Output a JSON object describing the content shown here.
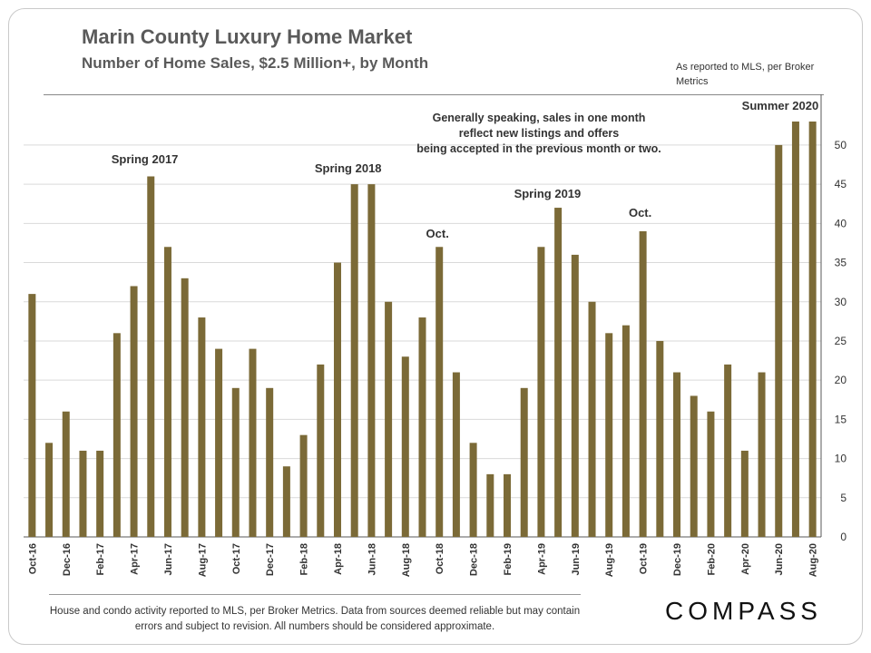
{
  "header": {
    "title": "Marin County Luxury Home Market",
    "subtitle": "Number of Home Sales, $2.5 Million+, by Month",
    "source_note": "As reported to MLS, per Broker Metrics"
  },
  "footer": {
    "footnote": "House and condo activity reported to MLS, per Broker Metrics. Data from sources deemed reliable but may contain errors and subject to revision. All numbers should be considered approximate.",
    "logo_text": "COMPASS"
  },
  "colors": {
    "bar": "#7b6a37",
    "grid": "#d9d9d9",
    "axis": "#595959",
    "text": "#333333"
  },
  "chart_data": {
    "type": "bar",
    "title": "Marin County Luxury Home Market",
    "subtitle": "Number of Home Sales, $2.5 Million+, by Month",
    "xlabel": "",
    "ylabel": "",
    "ylim": [
      0,
      53
    ],
    "yticks": [
      0,
      5,
      10,
      15,
      20,
      25,
      30,
      35,
      40,
      45,
      50
    ],
    "y_axis_side": "right",
    "grid": true,
    "categories": [
      "Oct-16",
      "Nov-16",
      "Dec-16",
      "Jan-17",
      "Feb-17",
      "Mar-17",
      "Apr-17",
      "May-17",
      "Jun-17",
      "Jul-17",
      "Aug-17",
      "Sep-17",
      "Oct-17",
      "Nov-17",
      "Dec-17",
      "Jan-18",
      "Feb-18",
      "Mar-18",
      "Apr-18",
      "May-18",
      "Jun-18",
      "Jul-18",
      "Aug-18",
      "Sep-18",
      "Oct-18",
      "Nov-18",
      "Dec-18",
      "Jan-19",
      "Feb-19",
      "Mar-19",
      "Apr-19",
      "May-19",
      "Jun-19",
      "Jul-19",
      "Aug-19",
      "Sep-19",
      "Oct-19",
      "Nov-19",
      "Dec-19",
      "Jan-20",
      "Feb-20",
      "Mar-20",
      "Apr-20",
      "May-20",
      "Jun-20",
      "Jul-20",
      "Aug-20"
    ],
    "tick_labels": [
      "Oct-16",
      "",
      "Dec-16",
      "",
      "Feb-17",
      "",
      "Apr-17",
      "",
      "Jun-17",
      "",
      "Aug-17",
      "",
      "Oct-17",
      "",
      "Dec-17",
      "",
      "Feb-18",
      "",
      "Apr-18",
      "",
      "Jun-18",
      "",
      "Aug-18",
      "",
      "Oct-18",
      "",
      "Dec-18",
      "",
      "Feb-19",
      "",
      "Apr-19",
      "",
      "Jun-19",
      "",
      "Aug-19",
      "",
      "Oct-19",
      "",
      "Dec-19",
      "",
      "Feb-20",
      "",
      "Apr-20",
      "",
      "Jun-20",
      "",
      "Aug-20"
    ],
    "values": [
      31,
      12,
      16,
      11,
      11,
      26,
      32,
      46,
      37,
      33,
      28,
      24,
      19,
      24,
      19,
      9,
      13,
      22,
      35,
      45,
      45,
      30,
      23,
      28,
      37,
      21,
      12,
      8,
      8,
      19,
      37,
      42,
      36,
      30,
      26,
      27,
      39,
      25,
      21,
      18,
      16,
      22,
      11,
      21,
      50,
      53,
      53
    ],
    "annotations": [
      {
        "text": "Spring 2017",
        "category": "Apr-17"
      },
      {
        "text": "Spring 2018",
        "category": "May-18"
      },
      {
        "text": "Oct.",
        "category": "Oct-18"
      },
      {
        "text": "Spring 2019",
        "category": "Apr-19"
      },
      {
        "text": "Oct.",
        "category": "Oct-19"
      },
      {
        "text": "Summer 2020",
        "category": "Jul-20"
      },
      {
        "text": "Generally speaking, sales in one month reflect new listings and offers being accepted in the previous month or two.",
        "category": "Nov-19"
      }
    ]
  }
}
